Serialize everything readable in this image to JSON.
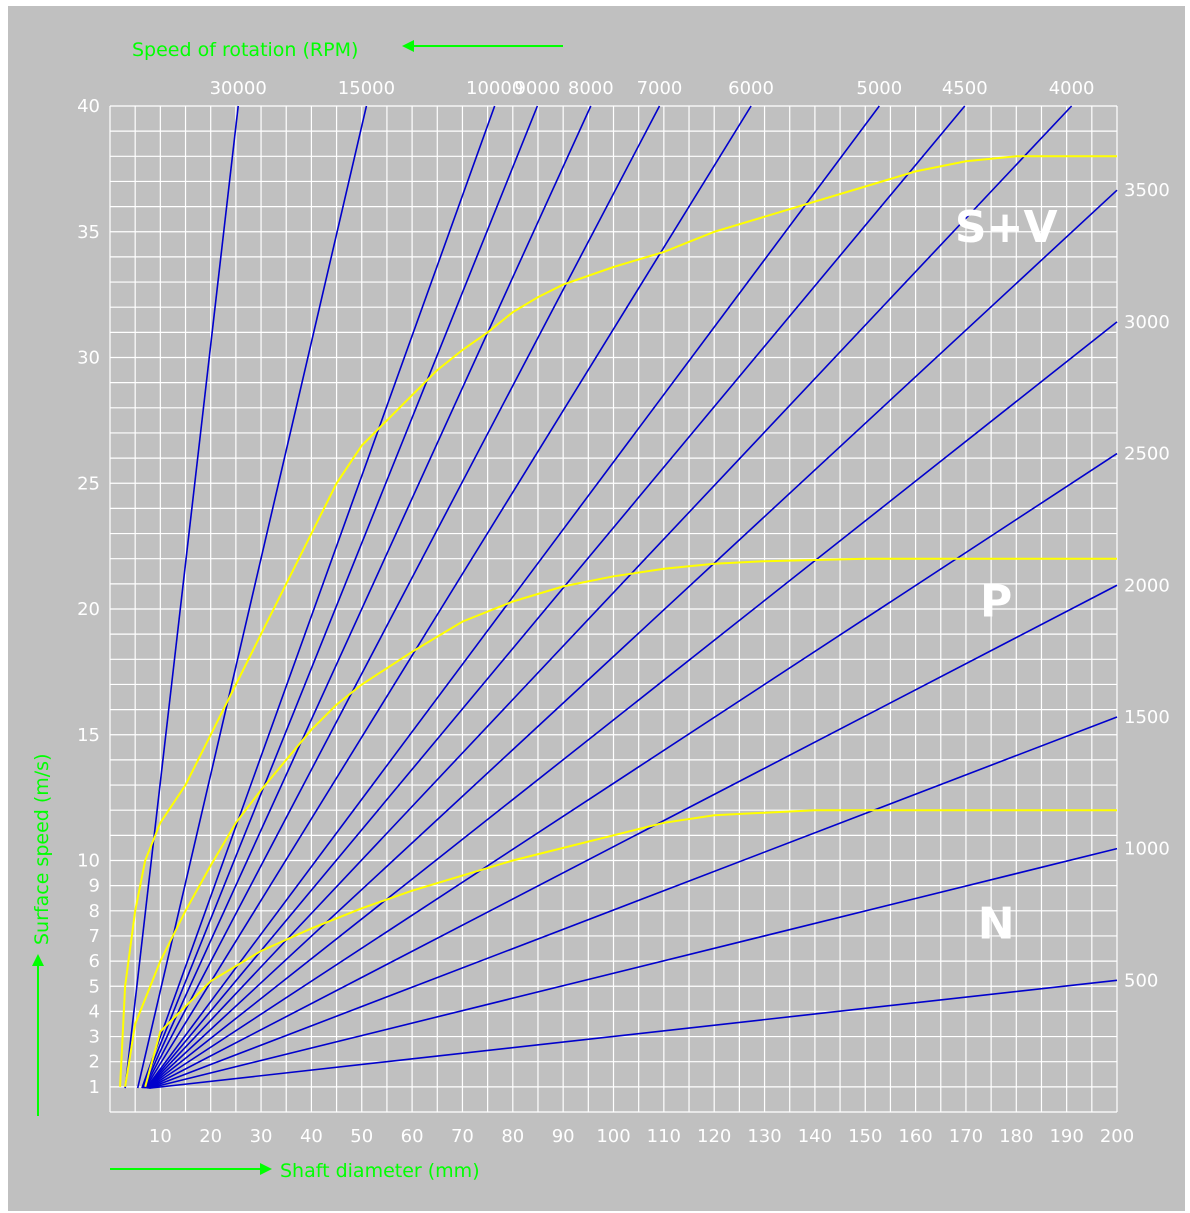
{
  "chart_data": {
    "type": "line",
    "title": "",
    "top_axis_label": "Speed of rotation (RPM)",
    "xlabel": "Shaft diameter (mm)",
    "ylabel": "Surface speed (m/s)",
    "xlim": [
      0,
      200
    ],
    "ylim": [
      0,
      40
    ],
    "grid": true,
    "x_ticks": [
      10,
      20,
      30,
      40,
      50,
      60,
      70,
      80,
      90,
      100,
      110,
      120,
      130,
      140,
      150,
      160,
      170,
      180,
      190,
      200
    ],
    "y_ticks": [
      1,
      2,
      3,
      4,
      5,
      6,
      7,
      8,
      9,
      10,
      15,
      20,
      25,
      30,
      35,
      40
    ],
    "rpm_top_labels": [
      "30000",
      "15000",
      "10000",
      "9000",
      "8000",
      "7000",
      "6000",
      "5000",
      "4500",
      "4000"
    ],
    "rpm_right_labels": [
      "3500",
      "3000",
      "2500",
      "2000",
      "1500",
      "1000",
      "500"
    ],
    "rpm_lines": [
      30000,
      15000,
      10000,
      9000,
      8000,
      7000,
      6000,
      5000,
      4500,
      4000,
      3500,
      3000,
      2500,
      2000,
      1500,
      1000,
      500
    ],
    "limit_curves": [
      {
        "label": "S+V",
        "points": [
          [
            2,
            1
          ],
          [
            3,
            5
          ],
          [
            5,
            8
          ],
          [
            7,
            10
          ],
          [
            10,
            11.5
          ],
          [
            15,
            13
          ],
          [
            20,
            15
          ],
          [
            25,
            17
          ],
          [
            30,
            19
          ],
          [
            35,
            21
          ],
          [
            40,
            23
          ],
          [
            45,
            25
          ],
          [
            50,
            26.5
          ],
          [
            55,
            27.5
          ],
          [
            60,
            28.5
          ],
          [
            65,
            29.5
          ],
          [
            70,
            30.3
          ],
          [
            75,
            31
          ],
          [
            80,
            31.8
          ],
          [
            85,
            32.4
          ],
          [
            90,
            32.9
          ],
          [
            100,
            33.6
          ],
          [
            110,
            34.2
          ],
          [
            120,
            35
          ],
          [
            130,
            35.6
          ],
          [
            140,
            36.2
          ],
          [
            150,
            36.8
          ],
          [
            160,
            37.4
          ],
          [
            170,
            37.8
          ],
          [
            180,
            38
          ],
          [
            200,
            38
          ]
        ]
      },
      {
        "label": "P",
        "points": [
          [
            3,
            1
          ],
          [
            5,
            3.5
          ],
          [
            10,
            6
          ],
          [
            15,
            8
          ],
          [
            20,
            9.8
          ],
          [
            25,
            11.5
          ],
          [
            30,
            12.8
          ],
          [
            35,
            14
          ],
          [
            40,
            15.2
          ],
          [
            45,
            16.2
          ],
          [
            50,
            17
          ],
          [
            60,
            18.3
          ],
          [
            70,
            19.5
          ],
          [
            80,
            20.3
          ],
          [
            90,
            20.9
          ],
          [
            100,
            21.3
          ],
          [
            110,
            21.6
          ],
          [
            120,
            21.8
          ],
          [
            130,
            21.9
          ],
          [
            150,
            22
          ],
          [
            200,
            22
          ]
        ]
      },
      {
        "label": "N",
        "points": [
          [
            7,
            1
          ],
          [
            10,
            3.2
          ],
          [
            15,
            4.2
          ],
          [
            20,
            5.2
          ],
          [
            30,
            6.4
          ],
          [
            40,
            7.3
          ],
          [
            50,
            8.1
          ],
          [
            60,
            8.8
          ],
          [
            70,
            9.4
          ],
          [
            80,
            10
          ],
          [
            90,
            10.5
          ],
          [
            100,
            11
          ],
          [
            110,
            11.5
          ],
          [
            120,
            11.8
          ],
          [
            140,
            12
          ],
          [
            200,
            12
          ]
        ]
      }
    ],
    "colors": {
      "background": "#c0c0c0",
      "grid": "#ffffff",
      "rpm_line": "#0000cc",
      "limit_curve": "#ffff00",
      "axis_title": "#00ff00",
      "tick_label": "#ffffff",
      "region_label": "#ffffff"
    }
  }
}
